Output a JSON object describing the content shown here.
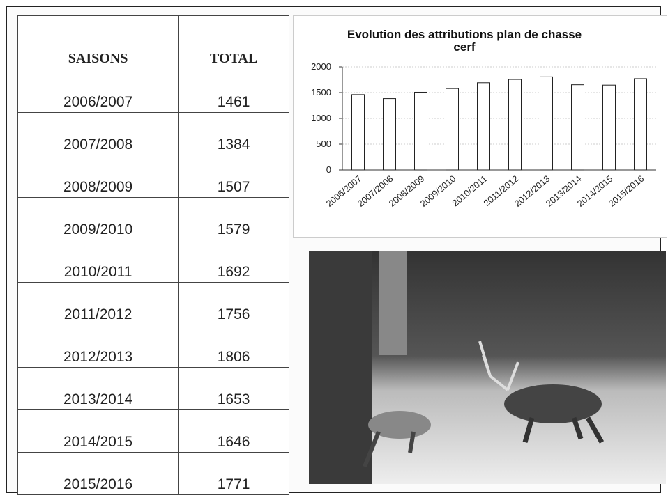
{
  "table": {
    "header": [
      "SAISONS",
      "TOTAL"
    ],
    "rows": [
      [
        "2006/2007",
        1461
      ],
      [
        "2007/2008",
        1384
      ],
      [
        "2008/2009",
        1507
      ],
      [
        "2009/2010",
        1579
      ],
      [
        "2010/2011",
        1692
      ],
      [
        "2011/2012",
        1756
      ],
      [
        "2012/2013",
        1806
      ],
      [
        "2013/2014",
        1653
      ],
      [
        "2014/2015",
        1646
      ],
      [
        "2015/2016",
        1771
      ]
    ]
  },
  "chart_data": {
    "type": "bar",
    "title": "Evolution des attributions plan de chasse cerf",
    "categories": [
      "2006/2007",
      "2007/2008",
      "2008/2009",
      "2009/2010",
      "2010/2011",
      "2011/2012",
      "2012/2013",
      "2013/2014",
      "2014/2015",
      "2015/2016"
    ],
    "values": [
      1461,
      1384,
      1507,
      1579,
      1692,
      1756,
      1806,
      1653,
      1646,
      1771
    ],
    "color": "#ffffff",
    "ylim": [
      0,
      2000
    ],
    "yticks": [
      0,
      500,
      1000,
      1500,
      2000
    ],
    "grid": true
  }
}
